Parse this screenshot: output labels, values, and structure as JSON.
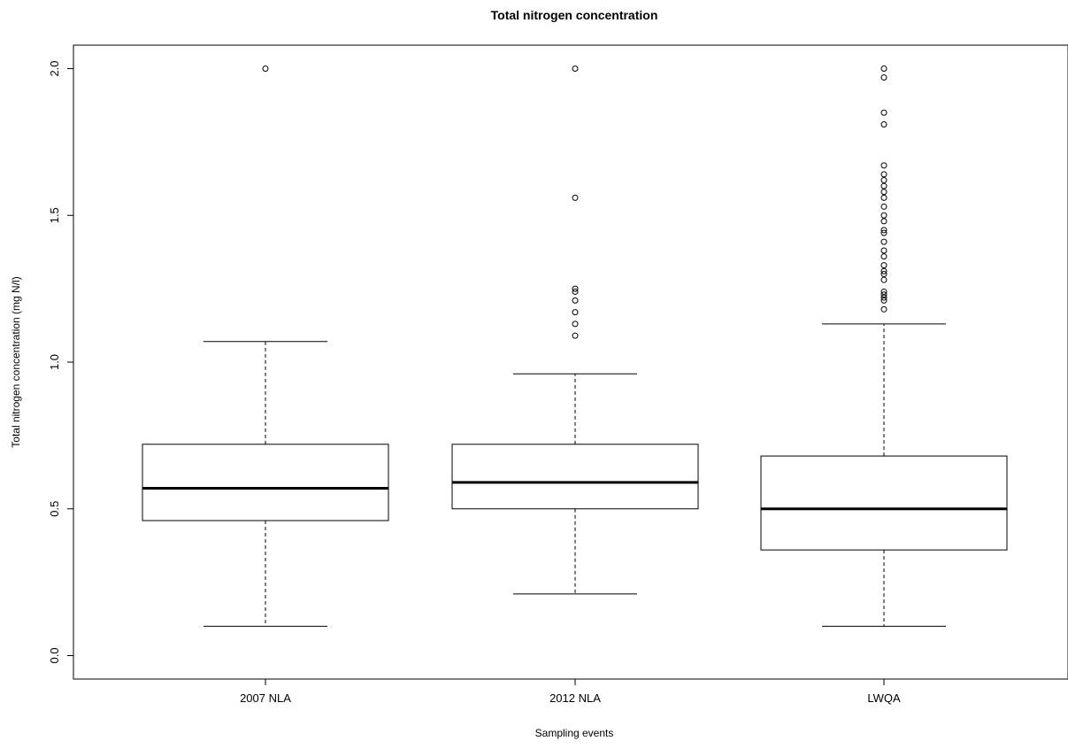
{
  "chart_data": {
    "type": "boxplot",
    "title": "Total nitrogen concentration",
    "xlabel": "Sampling events",
    "ylabel": "Total nitrogen concentration (mg N/l)",
    "ylim": [
      -0.08,
      2.08
    ],
    "yticks": [
      0.0,
      0.5,
      1.0,
      1.5,
      2.0
    ],
    "ytick_labels": [
      "0.0",
      "0.5",
      "1.0",
      "1.5",
      "2.0"
    ],
    "grid": false,
    "categories": [
      "2007 NLA",
      "2012 NLA",
      "LWQA"
    ],
    "boxes": [
      {
        "name": "2007 NLA",
        "whisker_low": 0.1,
        "q1": 0.46,
        "median": 0.57,
        "q3": 0.72,
        "whisker_high": 1.07,
        "outliers": [
          2.0
        ]
      },
      {
        "name": "2012 NLA",
        "whisker_low": 0.21,
        "q1": 0.5,
        "median": 0.59,
        "q3": 0.72,
        "whisker_high": 0.96,
        "outliers": [
          1.09,
          1.13,
          1.17,
          1.21,
          1.24,
          1.25,
          1.56,
          2.0
        ]
      },
      {
        "name": "LWQA",
        "whisker_low": 0.1,
        "q1": 0.36,
        "median": 0.5,
        "q3": 0.68,
        "whisker_high": 1.13,
        "outliers": [
          1.18,
          1.21,
          1.22,
          1.23,
          1.24,
          1.28,
          1.3,
          1.31,
          1.33,
          1.36,
          1.38,
          1.41,
          1.44,
          1.45,
          1.48,
          1.5,
          1.53,
          1.56,
          1.58,
          1.6,
          1.62,
          1.64,
          1.67,
          1.81,
          1.85,
          1.97,
          2.0
        ]
      }
    ]
  }
}
